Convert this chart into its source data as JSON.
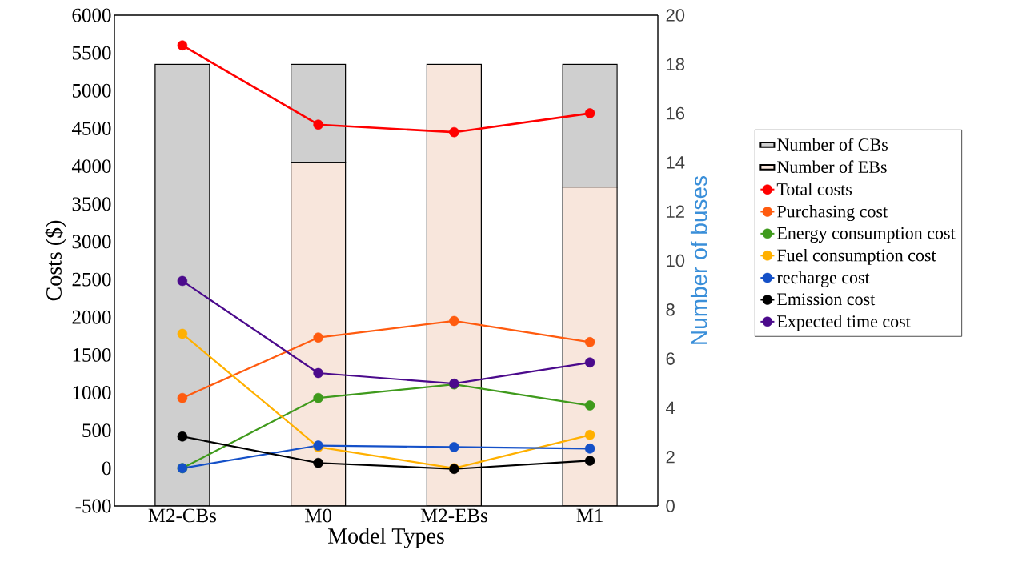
{
  "chart_data": {
    "type": "line",
    "categories": [
      "M2-CBs",
      "M0",
      "M2-EBs",
      "M1"
    ],
    "xlabel": "Model Types",
    "ylabel": "Costs ($)",
    "y2label": "Number of buses",
    "ylim": [
      -500,
      6000
    ],
    "yticks": [
      -500,
      0,
      500,
      1000,
      1500,
      2000,
      2500,
      3000,
      3500,
      4000,
      4500,
      5000,
      5500,
      6000
    ],
    "y2lim": [
      0,
      20
    ],
    "y2ticks": [
      0,
      2,
      4,
      6,
      8,
      10,
      12,
      14,
      16,
      18,
      20
    ],
    "stacked": true,
    "marker": "circle",
    "legend": "right",
    "grid": false,
    "series": [
      {
        "name": "Number of EBs",
        "type": "bar",
        "axis": "y2",
        "color": "#f8e6dc",
        "values": [
          0,
          14,
          18,
          13
        ]
      },
      {
        "name": "Number of CBs",
        "type": "bar",
        "axis": "y2",
        "color": "#cfcfcf",
        "values": [
          18,
          4,
          0,
          5
        ]
      },
      {
        "name": "Total costs",
        "color": "#ff0000",
        "values": [
          5600,
          4550,
          4450,
          4700
        ]
      },
      {
        "name": "Purchasing cost",
        "color": "#ff5b0f",
        "values": [
          930,
          1730,
          1950,
          1670
        ]
      },
      {
        "name": "Energy consumption cost",
        "color": "#3f9a1c",
        "values": [
          0,
          930,
          1110,
          830
        ]
      },
      {
        "name": "Fuel consumption cost",
        "color": "#ffb000",
        "values": [
          1780,
          280,
          0,
          440
        ]
      },
      {
        "name": "recharge cost",
        "color": "#1450c8",
        "values": [
          0,
          300,
          280,
          260
        ]
      },
      {
        "name": "Emission cost",
        "color": "#000000",
        "values": [
          420,
          70,
          -10,
          100
        ]
      },
      {
        "name": "Expected time cost",
        "color": "#4b0a8c",
        "values": [
          2480,
          1260,
          1120,
          1400
        ]
      }
    ]
  }
}
